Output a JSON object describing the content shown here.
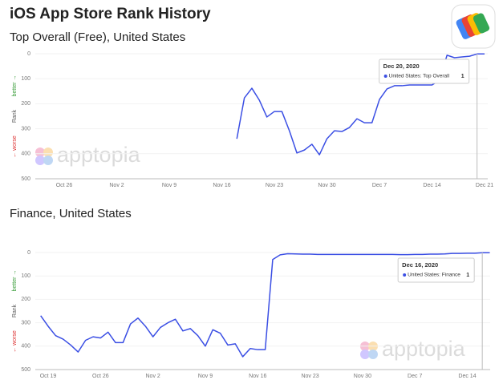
{
  "title": "iOS App Store Rank History",
  "watermark": "apptopia",
  "chart_data": [
    {
      "type": "line",
      "title": "Top Overall (Free), United States",
      "ylabel": "Rank",
      "annotations": [
        "better →",
        "← worse"
      ],
      "categories": [
        null,
        null,
        null,
        null,
        "Oct 26",
        null,
        null,
        null,
        null,
        null,
        null,
        "Nov 2",
        null,
        null,
        null,
        null,
        null,
        null,
        "Nov 9",
        null,
        null,
        null,
        null,
        null,
        null,
        "Nov 16",
        null,
        null,
        null,
        null,
        null,
        null,
        "Nov 23",
        null,
        null,
        null,
        null,
        null,
        null,
        "Nov 30",
        null,
        null,
        null,
        null,
        null,
        null,
        "Dec 7",
        null,
        null,
        null,
        null,
        null,
        null,
        "Dec 14",
        null,
        null,
        null,
        null,
        null,
        null,
        "Dec 21"
      ],
      "series": [
        {
          "name": "United States: Top Overall",
          "color": "#3b4fe4",
          "values": [
            null,
            null,
            null,
            null,
            null,
            null,
            null,
            null,
            null,
            null,
            null,
            null,
            null,
            null,
            null,
            null,
            null,
            null,
            null,
            null,
            null,
            null,
            null,
            null,
            null,
            null,
            null,
            340,
            177,
            138,
            186,
            253,
            231,
            231,
            308,
            397,
            385,
            362,
            404,
            340,
            308,
            311,
            295,
            260,
            276,
            276,
            183,
            141,
            128,
            128,
            125,
            125,
            125,
            125,
            106,
            6,
            16,
            13,
            10,
            1,
            1
          ]
        }
      ],
      "ylim": [
        500,
        0
      ],
      "yticks": [
        0,
        100,
        200,
        300,
        400,
        500
      ],
      "grid": true,
      "tooltip_date": "Dec 20, 2020",
      "tooltip_value": 1
    },
    {
      "type": "line",
      "title": "Finance, United States",
      "ylabel": "Rank",
      "annotations": [
        "better →",
        "← worse"
      ],
      "categories": [
        null,
        "Oct 19",
        null,
        null,
        null,
        null,
        null,
        null,
        "Oct 26",
        null,
        null,
        null,
        null,
        null,
        null,
        "Nov 2",
        null,
        null,
        null,
        null,
        null,
        null,
        "Nov 9",
        null,
        null,
        null,
        null,
        null,
        null,
        "Nov 16",
        null,
        null,
        null,
        null,
        null,
        null,
        "Nov 23",
        null,
        null,
        null,
        null,
        null,
        null,
        "Nov 30",
        null,
        null,
        null,
        null,
        null,
        null,
        "Dec 7",
        null,
        null,
        null,
        null,
        null,
        null,
        "Dec 14",
        null,
        null,
        null
      ],
      "series": [
        {
          "name": "United States: Finance",
          "color": "#3b4fe4",
          "values": [
            270,
            315,
            355,
            370,
            395,
            425,
            375,
            360,
            365,
            340,
            385,
            385,
            305,
            280,
            315,
            360,
            320,
            300,
            285,
            335,
            325,
            355,
            400,
            330,
            345,
            395,
            390,
            445,
            410,
            415,
            415,
            30,
            10,
            5,
            6,
            7,
            7,
            8,
            8,
            8,
            8,
            8,
            8,
            8,
            8,
            8,
            8,
            8,
            9,
            9,
            8,
            8,
            7,
            7,
            6,
            4,
            4,
            3,
            3,
            1,
            1
          ]
        }
      ],
      "ylim": [
        500,
        0
      ],
      "yticks": [
        0,
        100,
        200,
        300,
        400,
        500
      ],
      "grid": true,
      "tooltip_date": "Dec 16, 2020",
      "tooltip_value": 1
    }
  ]
}
